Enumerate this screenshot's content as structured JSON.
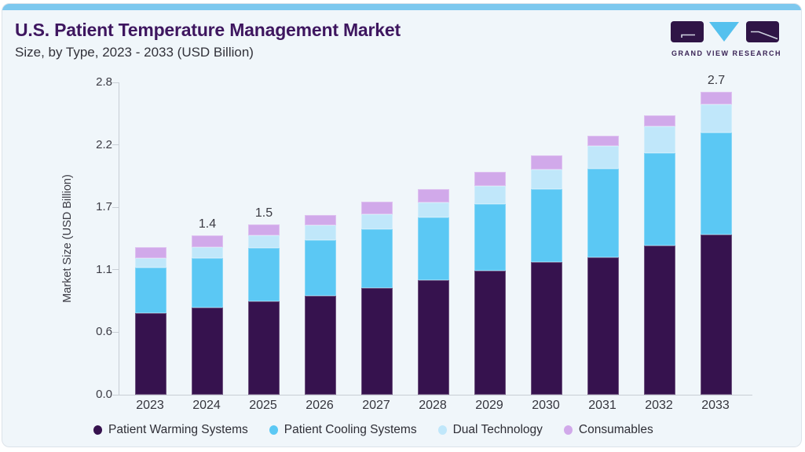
{
  "header": {
    "title": "U.S. Patient Temperature Management Market",
    "subtitle": "Size, by Type, 2023 - 2033 (USD Billion)",
    "logo_text": "GRAND VIEW RESEARCH"
  },
  "chart_data": {
    "type": "bar",
    "stacked": true,
    "title": "U.S. Patient Temperature Management Market Size, by Type, 2023 - 2033 (USD Billion)",
    "categories": [
      "2023",
      "2024",
      "2025",
      "2026",
      "2027",
      "2028",
      "2029",
      "2030",
      "2031",
      "2032",
      "2033"
    ],
    "series": [
      {
        "name": "Patient Warming Systems",
        "color": "#36124e",
        "values": [
          0.72,
          0.77,
          0.82,
          0.87,
          0.94,
          1.01,
          1.09,
          1.17,
          1.21,
          1.31,
          1.41
        ]
      },
      {
        "name": "Patient Cooling Systems",
        "color": "#5bc8f4",
        "values": [
          0.4,
          0.43,
          0.47,
          0.49,
          0.52,
          0.55,
          0.59,
          0.64,
          0.78,
          0.82,
          0.9
        ]
      },
      {
        "name": "Dual Technology",
        "color": "#c0e7fa",
        "values": [
          0.08,
          0.1,
          0.11,
          0.13,
          0.13,
          0.13,
          0.16,
          0.17,
          0.2,
          0.23,
          0.25
        ]
      },
      {
        "name": "Consumables",
        "color": "#d1a9ea",
        "values": [
          0.1,
          0.1,
          0.1,
          0.09,
          0.11,
          0.12,
          0.12,
          0.13,
          0.09,
          0.1,
          0.11
        ]
      }
    ],
    "totals": [
      1.3,
      1.4,
      1.5,
      1.58,
      1.7,
      1.81,
      1.96,
      2.11,
      2.28,
      2.46,
      2.67
    ],
    "bar_total_labels": [
      "",
      "1.4",
      "1.5",
      "",
      "",
      "",
      "",
      "",
      "",
      "",
      "2.7"
    ],
    "xlabel": "",
    "ylabel": "Market Size (USD Billion)",
    "ylim": [
      0,
      2.75
    ],
    "yticks": [
      {
        "label": "0.0",
        "value": 0
      },
      {
        "label": "0.6",
        "value": 0.55
      },
      {
        "label": "1.1",
        "value": 1.1
      },
      {
        "label": "1.7",
        "value": 1.65
      },
      {
        "label": "2.2",
        "value": 2.2
      },
      {
        "label": "2.8",
        "value": 2.75
      }
    ],
    "grid": false,
    "legend_position": "bottom"
  },
  "colors": {
    "accent_bar": "#7dc8ee",
    "card_background": "#f0f6fa",
    "title_text": "#3e165f",
    "body_text": "#35353d",
    "axis_line": "#c7cdd4",
    "logo_dark": "#2f1546",
    "logo_blue": "#55c1ee"
  }
}
